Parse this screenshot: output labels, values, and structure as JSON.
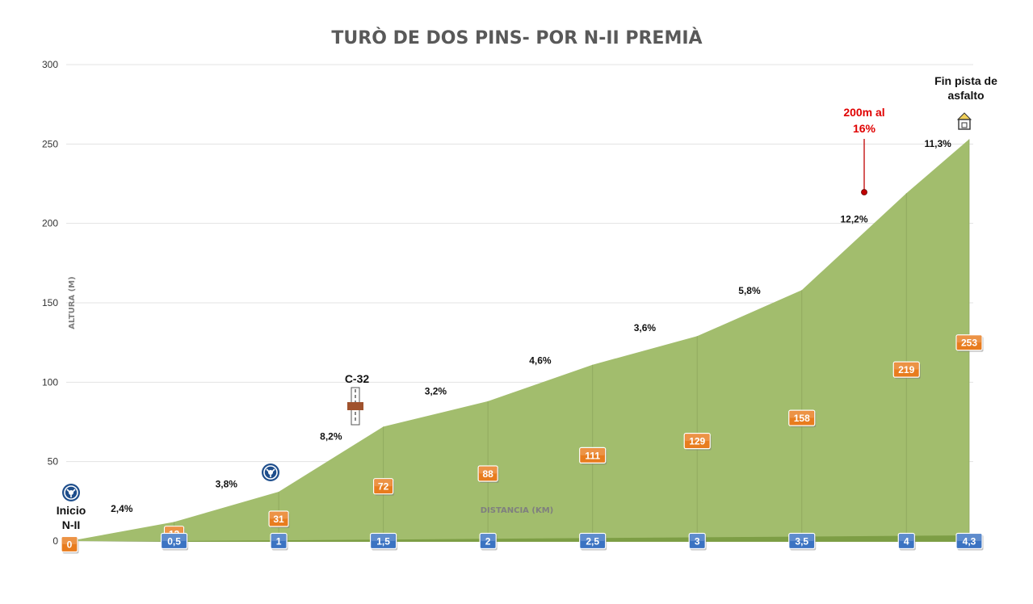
{
  "chart_data": {
    "type": "area",
    "title": "TURÒ DE DOS PINS- POR N-II PREMIÀ",
    "xlabel": "DISTANCIA (KM)",
    "ylabel": "ALTURA (M)",
    "xlim": [
      0,
      4.3
    ],
    "ylim": [
      0,
      300
    ],
    "yticks": [
      "0",
      "50",
      "100",
      "150",
      "200",
      "250",
      "300"
    ],
    "grid": "horizontal",
    "x": [
      0,
      0.5,
      1,
      1.5,
      2,
      2.5,
      3,
      3.5,
      4,
      4.3
    ],
    "x_labels": [
      "0",
      "0,5",
      "1",
      "1,5",
      "2",
      "2,5",
      "3",
      "3,5",
      "4",
      "4,3"
    ],
    "altitude": [
      0,
      12,
      31,
      72,
      88,
      111,
      129,
      158,
      219,
      253
    ],
    "altitude_labels": [
      "0",
      "12",
      "31",
      "72",
      "88",
      "111",
      "129",
      "158",
      "219",
      "253"
    ],
    "grades": [
      "2,4%",
      "3,8%",
      "8,2%",
      "3,2%",
      "4,6%",
      "3,6%",
      "5,8%",
      "12,2%",
      "11,3%"
    ],
    "area_color": "#a2bd6d",
    "altitude_badge_color": "#e87c1e",
    "distance_badge_color": "#3b73c2",
    "annotations": {
      "start": [
        "Inicio",
        "N-II"
      ],
      "crossing": "C-32",
      "steep": [
        "200m al",
        "16%"
      ],
      "end": [
        "Fin pista de",
        "asfalto"
      ]
    },
    "icons": {
      "start": "roundabout-icon",
      "km1": "roundabout-icon",
      "crossing": "road-bridge-icon",
      "steep": "pin-marker-icon",
      "end": "house-icon"
    }
  }
}
